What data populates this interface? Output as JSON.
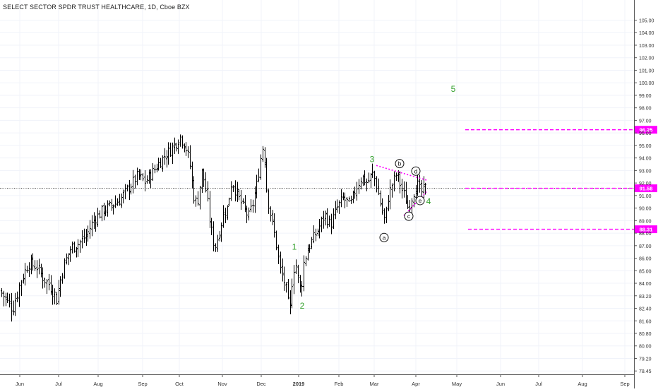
{
  "title": "SELECT SECTOR SPDR TRUST HEALTHCARE, 1D, Cboe BZX",
  "chart_data": {
    "type": "ohlc",
    "title": "SELECT SECTOR SPDR TRUST HEALTHCARE, 1D, Cboe BZX",
    "ylim": [
      77.8,
      105.6
    ],
    "y_ticks": [
      78.45,
      79.2,
      80.0,
      80.8,
      81.6,
      82.4,
      83.2,
      84.0,
      85.0,
      86.0,
      87.0,
      88.0,
      89.0,
      90.0,
      91.0,
      92.0,
      93.0,
      94.0,
      95.0,
      96.0,
      97.0,
      98.0,
      99.0,
      100.0,
      101.0,
      102.0,
      103.0,
      104.0,
      105.0
    ],
    "x_labels": [
      "Jun",
      "Jul",
      "Aug",
      "Sep",
      "Oct",
      "Nov",
      "Dec",
      "2019",
      "Feb",
      "Mar",
      "Apr",
      "May",
      "Jun",
      "Jul",
      "Aug",
      "Sep"
    ],
    "x_label_bold": "2019",
    "price_path": [
      [
        0,
        83.5
      ],
      [
        8,
        83.0
      ],
      [
        18,
        82.4
      ],
      [
        28,
        84.0
      ],
      [
        40,
        85.6
      ],
      [
        52,
        85.3
      ],
      [
        62,
        84.3
      ],
      [
        72,
        83.8
      ],
      [
        80,
        83.0
      ],
      [
        90,
        85.4
      ],
      [
        100,
        86.8
      ],
      [
        112,
        87.2
      ],
      [
        122,
        87.8
      ],
      [
        132,
        89.0
      ],
      [
        145,
        89.8
      ],
      [
        158,
        90.2
      ],
      [
        170,
        90.7
      ],
      [
        182,
        91.6
      ],
      [
        195,
        92.6
      ],
      [
        205,
        92.1
      ],
      [
        215,
        92.8
      ],
      [
        225,
        93.6
      ],
      [
        235,
        94.3
      ],
      [
        245,
        94.9
      ],
      [
        255,
        95.7
      ],
      [
        262,
        95.0
      ],
      [
        268,
        93.8
      ],
      [
        274,
        91.0
      ],
      [
        279,
        90.3
      ],
      [
        286,
        93.0
      ],
      [
        292,
        91.2
      ],
      [
        298,
        88.5
      ],
      [
        304,
        86.8
      ],
      [
        310,
        88.0
      ],
      [
        316,
        89.5
      ],
      [
        322,
        90.0
      ],
      [
        328,
        92.2
      ],
      [
        336,
        91.0
      ],
      [
        344,
        90.1
      ],
      [
        352,
        89.3
      ],
      [
        358,
        90.4
      ],
      [
        364,
        92.0
      ],
      [
        369,
        94.0
      ],
      [
        373,
        95.2
      ],
      [
        378,
        91.0
      ],
      [
        384,
        89.2
      ],
      [
        390,
        87.5
      ],
      [
        396,
        85.2
      ],
      [
        402,
        84.2
      ],
      [
        406,
        83.3
      ],
      [
        410,
        82.0
      ],
      [
        414,
        84.5
      ],
      [
        418,
        85.8
      ],
      [
        422,
        84.3
      ],
      [
        426,
        83.4
      ],
      [
        430,
        85.6
      ],
      [
        436,
        86.8
      ],
      [
        444,
        87.6
      ],
      [
        452,
        88.5
      ],
      [
        460,
        89.5
      ],
      [
        468,
        88.6
      ],
      [
        476,
        89.9
      ],
      [
        486,
        90.8
      ],
      [
        496,
        90.2
      ],
      [
        504,
        91.6
      ],
      [
        512,
        92.5
      ],
      [
        520,
        92.0
      ],
      [
        528,
        92.8
      ],
      [
        534,
        91.6
      ],
      [
        540,
        90.0
      ],
      [
        545,
        88.9
      ],
      [
        550,
        91.0
      ],
      [
        556,
        92.0
      ],
      [
        562,
        92.8
      ],
      [
        568,
        91.6
      ],
      [
        574,
        90.8
      ],
      [
        578,
        90.0
      ],
      [
        584,
        91.0
      ],
      [
        590,
        92.0
      ],
      [
        596,
        91.2
      ],
      [
        602,
        91.58
      ]
    ],
    "last_price": "91.58",
    "levels": [
      {
        "value": 96.25,
        "label": "96.25"
      },
      {
        "value": 91.58,
        "label": "91.58"
      },
      {
        "value": 88.31,
        "label": "88.31"
      }
    ],
    "wave_labels_green": [
      "1",
      "2",
      "3",
      "4",
      "5"
    ],
    "wave_labels_circled": [
      "a",
      "b",
      "c",
      "d",
      "e"
    ],
    "colors": {
      "bars": "#000000",
      "levels": "#ff00ff",
      "wave_green": "#33a02c",
      "axis_text": "#333333",
      "grid": "#f0f3fa"
    }
  }
}
